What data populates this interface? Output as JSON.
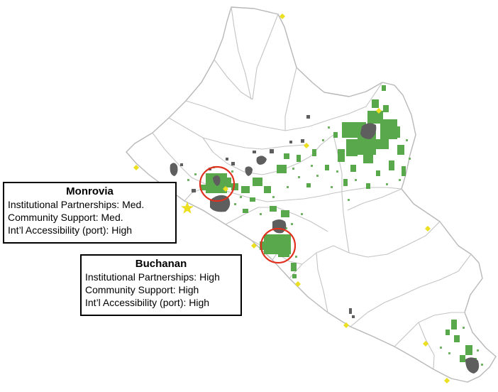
{
  "colors": {
    "boundary": "#b8b8b8",
    "vegetation": "#5aa84c",
    "urban": "#5e5e5e",
    "site_marker": "#ecdf1f",
    "capital_marker": "#ecdf1f",
    "highlight_circle": "#e0301e"
  },
  "icons": {
    "capital": "star-icon",
    "site": "diamond-icon"
  },
  "callouts": {
    "monrovia": {
      "title": "Monrovia",
      "lines": [
        "Institutional Partnerships: Med.",
        "Community Support: Med.",
        "Int’l Accessibility (port): High"
      ]
    },
    "buchanan": {
      "title": "Buchanan",
      "lines": [
        "Institutional Partnerships: High",
        "Community Support: High",
        "Int’l Accessibility (port): High"
      ]
    }
  }
}
